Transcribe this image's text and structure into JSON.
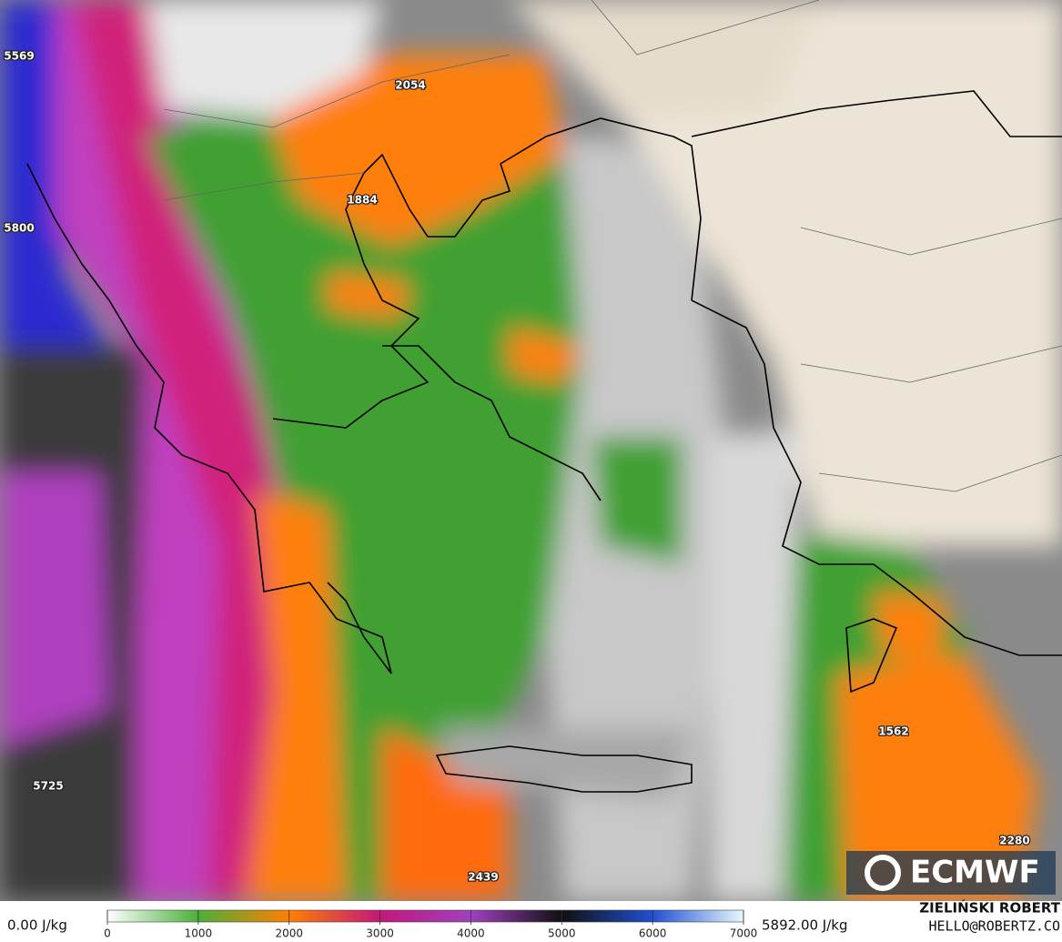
{
  "map": {
    "labels": [
      5569,
      5800,
      2054,
      1884,
      5725,
      1562,
      2280,
      2439
    ]
  },
  "colorbar": {
    "min_label": "0.00 J/kg",
    "max_label": "5892.00 J/kg",
    "ticks": [
      0,
      1000,
      2000,
      3000,
      4000,
      5000,
      6000,
      7000
    ],
    "colors": [
      "#ffffff",
      "#4caf3a",
      "#ff7f00",
      "#c2187a",
      "#a040c0",
      "#101010",
      "#2050d0",
      "#e8f8ff"
    ]
  },
  "logo": "ECMWF",
  "credits": {
    "author": "ZIELIŃSKI ROBERT",
    "contact": "HELLO@ROBERTZ.CO"
  }
}
